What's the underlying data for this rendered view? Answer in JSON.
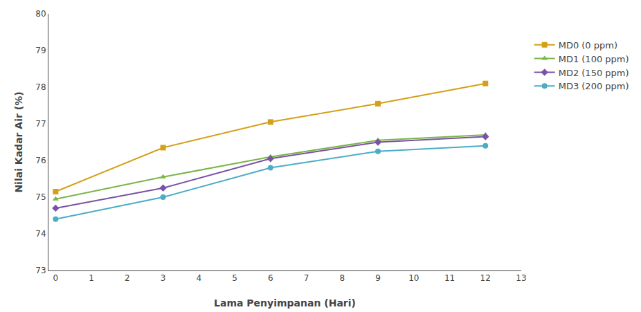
{
  "chart_data": {
    "type": "line",
    "x": [
      0,
      3,
      6,
      9,
      12
    ],
    "series": [
      {
        "name": "MD0 (0 ppm)",
        "color": "#D4A017",
        "marker": "square",
        "values": [
          75.15,
          76.35,
          77.05,
          77.55,
          78.1
        ]
      },
      {
        "name": "MD1 (100 ppm)",
        "color": "#7AB648",
        "marker": "triangle-up",
        "values": [
          74.95,
          75.55,
          76.1,
          76.55,
          76.7
        ]
      },
      {
        "name": "MD2 (150 ppm)",
        "color": "#7B52A6",
        "marker": "diamond",
        "values": [
          74.7,
          75.25,
          76.05,
          76.5,
          76.65
        ]
      },
      {
        "name": "MD3 (200 ppm)",
        "color": "#4BACC6",
        "marker": "circle",
        "values": [
          74.4,
          75.0,
          75.8,
          76.25,
          76.4
        ]
      }
    ],
    "xlabel": "Lama Penyimpanan (Hari)",
    "ylabel": "Nilai Kadar Air (%)",
    "xlim": [
      -0.2,
      13
    ],
    "ylim": [
      73,
      80
    ],
    "xticks": [
      0,
      1,
      2,
      3,
      4,
      5,
      6,
      7,
      8,
      9,
      10,
      11,
      12,
      13
    ],
    "yticks": [
      73,
      74,
      75,
      76,
      77,
      78,
      79,
      80
    ],
    "grid": false,
    "legend": "right"
  }
}
